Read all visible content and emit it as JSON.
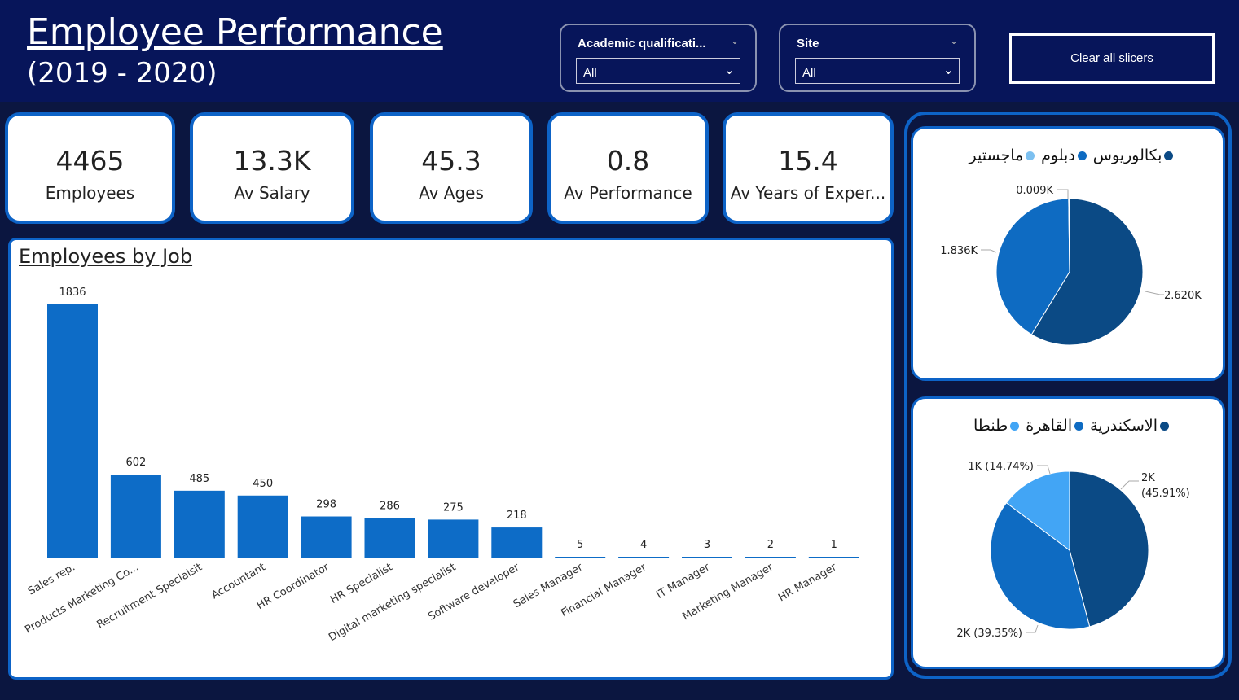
{
  "header": {
    "title": "Employee Performance",
    "subtitle": "(2019 - 2020)",
    "clear_label": "Clear all slicers"
  },
  "slicers": [
    {
      "label": "Academic qualificati...",
      "value": "All"
    },
    {
      "label": "Site",
      "value": "All"
    }
  ],
  "kpis": [
    {
      "value": "4465",
      "label": "Employees"
    },
    {
      "value": "13.3K",
      "label": "Av Salary"
    },
    {
      "value": "45.3",
      "label": "Av Ages"
    },
    {
      "value": "0.8",
      "label": "Av Performance"
    },
    {
      "value": "15.4",
      "label": "Av Years of Exper..."
    }
  ],
  "chart_data": [
    {
      "type": "bar",
      "title": "Employees by Job",
      "categories": [
        "Sales rep.",
        "Products Marketing Co...",
        "Recruitment Specialsit",
        "Accountant",
        "HR Coordinator",
        "HR Specialist",
        "Digital marketing specialist",
        "Software developer",
        "Sales Manager",
        "Financial Manager",
        "IT Manager",
        "Marketing Manager",
        "HR Manager"
      ],
      "values": [
        1836,
        602,
        485,
        450,
        298,
        286,
        275,
        218,
        5,
        4,
        3,
        2,
        1
      ],
      "color": "#0d6cc7"
    },
    {
      "type": "pie",
      "legend": [
        "بكالوريوس",
        "دبلوم",
        "ماجستير"
      ],
      "values": [
        2620,
        1836,
        9
      ],
      "labels": [
        "2.620K",
        "1.836K",
        "0.009K"
      ],
      "colors": [
        "#0b4a85",
        "#0e6bc2",
        "#7cc0f0"
      ],
      "legend_placement": "top"
    },
    {
      "type": "pie",
      "legend": [
        "الاسكندرية",
        "القاهرة",
        "طنطا"
      ],
      "values": [
        45.91,
        39.35,
        14.74
      ],
      "labels": [
        "2K (45.91%)",
        "2K (39.35%)",
        "1K (14.74%)"
      ],
      "label_lines": [
        [
          "2K",
          "(45.91%)"
        ],
        [
          "2K (39.35%)"
        ],
        [
          "1K (14.74%)"
        ]
      ],
      "colors": [
        "#0b4a85",
        "#0e6bc2",
        "#42a5f5"
      ],
      "legend_placement": "top"
    }
  ]
}
